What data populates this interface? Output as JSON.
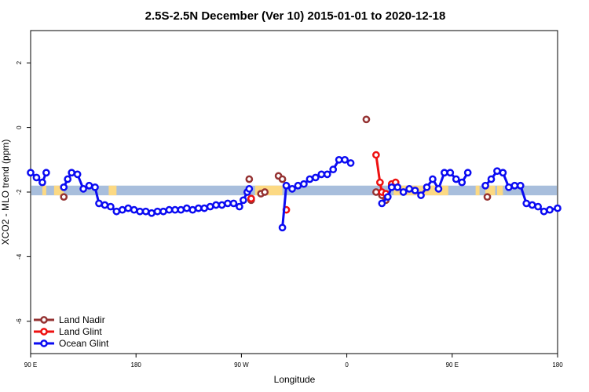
{
  "chart_data": {
    "type": "line",
    "title": "2.5S-2.5N December (Ver 10)   2015-01-01 to 2020-12-18",
    "xlabel": "Longitude",
    "ylabel": "XCO2 - MLO trend (ppm)",
    "xlim": [
      -90,
      180
    ],
    "ylim": [
      -7,
      3
    ],
    "x_ticks": [
      {
        "value": -90,
        "label": "90 E"
      },
      {
        "value": -36,
        "label": "180"
      },
      {
        "value": 18,
        "label": "90 W"
      },
      {
        "value": 72,
        "label": "0"
      },
      {
        "value": 126,
        "label": "90 E"
      },
      {
        "value": 180,
        "label": "180"
      }
    ],
    "y_ticks": [
      {
        "value": 2,
        "label": "2"
      },
      {
        "value": 0,
        "label": "0"
      },
      {
        "value": -2,
        "label": "-2"
      },
      {
        "value": -4,
        "label": "-4"
      },
      {
        "value": -6,
        "label": "-6"
      }
    ],
    "grid": false,
    "legend_position": "bottom-left",
    "background_band": {
      "y_range": [
        -2.1,
        -1.8
      ],
      "ocean_color": "#a8bedc",
      "land_color": "#fcd983",
      "land_segments": [
        [
          -84,
          -82
        ],
        [
          -78,
          -73
        ],
        [
          -50,
          -46
        ],
        [
          25,
          39
        ],
        [
          96,
          124
        ],
        [
          138,
          140
        ],
        [
          143,
          148
        ],
        [
          149,
          152
        ]
      ]
    },
    "series": [
      {
        "name": "Land Nadir",
        "color": "#953232",
        "points": [
          [
            -73,
            -2.15
          ],
          [
            22,
            -1.6
          ],
          [
            23,
            -2.25
          ],
          [
            28,
            -2.05
          ],
          [
            30,
            -2.0
          ],
          [
            37,
            -1.5
          ],
          [
            39,
            -1.6
          ],
          [
            82,
            0.25
          ],
          [
            87,
            -2.0
          ],
          [
            90,
            -2.1
          ],
          [
            92,
            -2.25
          ],
          [
            95,
            -1.8
          ],
          [
            144,
            -2.15
          ]
        ]
      },
      {
        "name": "Land Glint",
        "color": "#ee1111",
        "points": [
          [
            23,
            -2.2
          ],
          [
            41,
            -2.55
          ],
          [
            87,
            -0.85
          ],
          [
            89,
            -1.7
          ],
          [
            90,
            -2.0
          ],
          [
            92,
            -2.05
          ],
          [
            95,
            -1.75
          ],
          [
            97,
            -1.7
          ]
        ],
        "connected": [
          [
            87,
            -0.85
          ],
          [
            89,
            -1.7
          ],
          [
            90,
            -2.0
          ],
          [
            92,
            -2.05
          ]
        ]
      },
      {
        "name": "Ocean Glint",
        "color": "#0b0bf2",
        "segments": [
          [
            [
              -90,
              -1.4
            ],
            [
              -87,
              -1.55
            ],
            [
              -84,
              -1.7
            ],
            [
              -82,
              -1.4
            ]
          ],
          [
            [
              -73,
              -1.85
            ],
            [
              -71,
              -1.6
            ],
            [
              -69,
              -1.4
            ],
            [
              -66,
              -1.45
            ],
            [
              -63,
              -1.9
            ],
            [
              -60,
              -1.8
            ],
            [
              -57,
              -1.85
            ],
            [
              -55,
              -2.35
            ],
            [
              -52,
              -2.4
            ],
            [
              -49,
              -2.45
            ],
            [
              -46,
              -2.6
            ],
            [
              -43,
              -2.55
            ],
            [
              -40,
              -2.5
            ],
            [
              -37,
              -2.55
            ],
            [
              -34,
              -2.6
            ],
            [
              -31,
              -2.6
            ],
            [
              -28,
              -2.65
            ],
            [
              -25,
              -2.6
            ],
            [
              -22,
              -2.6
            ],
            [
              -19,
              -2.55
            ],
            [
              -16,
              -2.55
            ],
            [
              -13,
              -2.55
            ],
            [
              -10,
              -2.5
            ],
            [
              -7,
              -2.55
            ],
            [
              -4,
              -2.5
            ],
            [
              -1,
              -2.5
            ],
            [
              2,
              -2.45
            ],
            [
              5,
              -2.4
            ],
            [
              8,
              -2.4
            ],
            [
              11,
              -2.35
            ],
            [
              14,
              -2.35
            ],
            [
              17,
              -2.45
            ],
            [
              19,
              -2.25
            ],
            [
              21,
              -2.0
            ],
            [
              22,
              -1.9
            ]
          ],
          [
            [
              39,
              -3.1
            ],
            [
              41,
              -1.8
            ],
            [
              44,
              -1.9
            ],
            [
              47,
              -1.8
            ],
            [
              50,
              -1.75
            ],
            [
              53,
              -1.6
            ],
            [
              56,
              -1.55
            ],
            [
              59,
              -1.45
            ],
            [
              62,
              -1.45
            ],
            [
              65,
              -1.3
            ],
            [
              68,
              -1.0
            ],
            [
              71,
              -1.0
            ],
            [
              74,
              -1.1
            ]
          ],
          [
            [
              90,
              -2.35
            ],
            [
              93,
              -2.15
            ],
            [
              95,
              -1.85
            ],
            [
              98,
              -1.85
            ],
            [
              101,
              -2.0
            ],
            [
              104,
              -1.9
            ],
            [
              107,
              -1.95
            ],
            [
              110,
              -2.1
            ],
            [
              113,
              -1.85
            ],
            [
              116,
              -1.6
            ],
            [
              119,
              -1.9
            ],
            [
              122,
              -1.4
            ],
            [
              125,
              -1.4
            ],
            [
              128,
              -1.6
            ],
            [
              131,
              -1.7
            ],
            [
              134,
              -1.4
            ]
          ],
          [
            [
              143,
              -1.8
            ],
            [
              146,
              -1.6
            ],
            [
              149,
              -1.35
            ],
            [
              152,
              -1.4
            ],
            [
              155,
              -1.85
            ],
            [
              158,
              -1.8
            ],
            [
              161,
              -1.8
            ],
            [
              164,
              -2.35
            ],
            [
              167,
              -2.4
            ],
            [
              170,
              -2.45
            ],
            [
              173,
              -2.6
            ],
            [
              176,
              -2.55
            ],
            [
              180,
              -2.5
            ]
          ]
        ]
      }
    ]
  }
}
